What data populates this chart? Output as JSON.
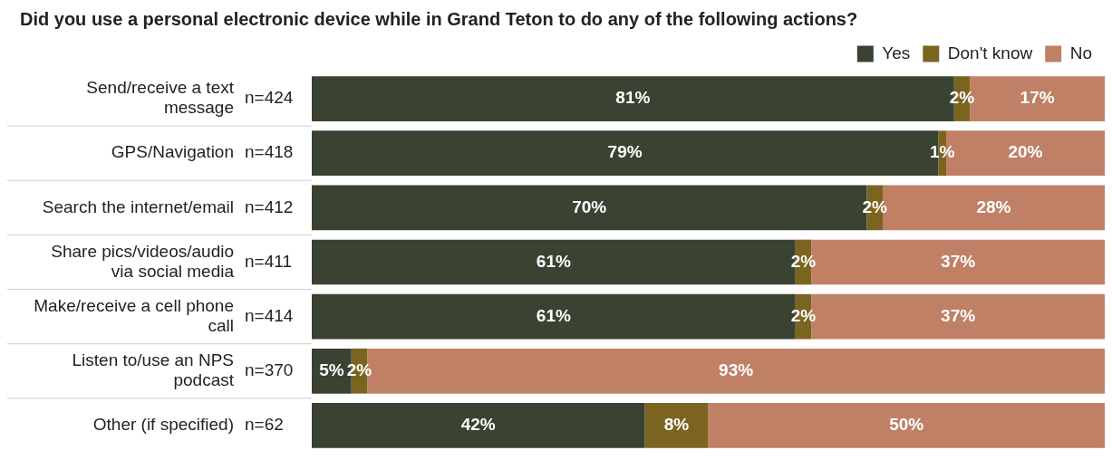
{
  "chart_data": {
    "type": "bar",
    "orientation": "horizontal",
    "stacked": true,
    "title": "Did you use a personal electronic device while in Grand Teton to do any of the following actions?",
    "categories": [
      "Send/receive a text message",
      "GPS/Navigation",
      "Search the internet/email",
      "Share pics/videos/audio via social media",
      "Make/receive a cell phone call",
      "Listen to/use an NPS podcast",
      "Other (if specified)"
    ],
    "annotations": [
      "n=424",
      "n=418",
      "n=412",
      "n=411",
      "n=414",
      "n=370",
      "n=62"
    ],
    "series": [
      {
        "name": "Yes",
        "color": "#3a4232",
        "values": [
          81,
          79,
          70,
          61,
          61,
          5,
          42
        ],
        "value_labels": [
          "81%",
          "79%",
          "70%",
          "61%",
          "61%",
          "5%",
          "42%"
        ]
      },
      {
        "name": "Don't know",
        "color": "#7b6420",
        "values": [
          2,
          1,
          2,
          2,
          2,
          2,
          8
        ],
        "value_labels": [
          "2%",
          "1%",
          "2%",
          "2%",
          "2%",
          "2%",
          "8%"
        ]
      },
      {
        "name": "No",
        "color": "#c08066",
        "values": [
          17,
          20,
          28,
          37,
          37,
          93,
          50
        ],
        "value_labels": [
          "17%",
          "20%",
          "28%",
          "37%",
          "37%",
          "93%",
          "50%"
        ]
      }
    ],
    "tick_labels": "y",
    "legend": "top"
  }
}
